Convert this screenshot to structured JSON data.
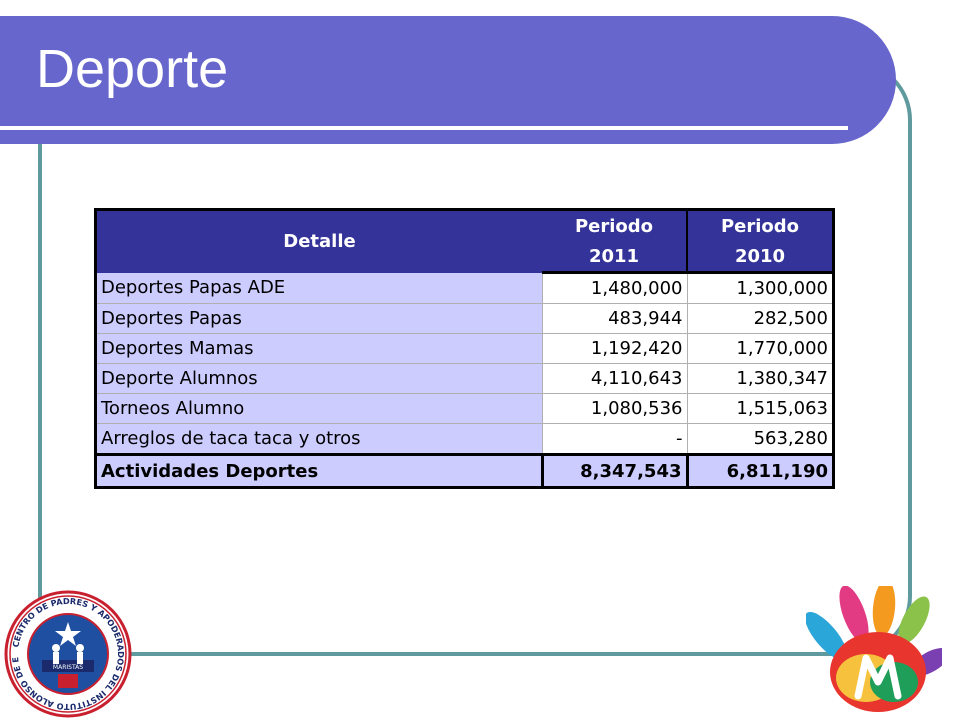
{
  "slide": {
    "title": "Deporte"
  },
  "table": {
    "header": {
      "detalle": "Detalle",
      "col1_line1": "Periodo",
      "col1_line2": "2011",
      "col2_line1": "Periodo",
      "col2_line2": "2010"
    },
    "rows": [
      {
        "label": "Deportes Papas ADE",
        "y2011": "1,480,000",
        "y2010": "1,300,000"
      },
      {
        "label": "Deportes Papas",
        "y2011": "483,944",
        "y2010": "282,500"
      },
      {
        "label": "Deportes Mamas",
        "y2011": "1,192,420",
        "y2010": "1,770,000"
      },
      {
        "label": "Deporte Alumnos",
        "y2011": "4,110,643",
        "y2010": "1,380,347"
      },
      {
        "label": "Torneos Alumno",
        "y2011": "1,080,536",
        "y2010": "1,515,063"
      },
      {
        "label": "Arreglos de taca taca y otros",
        "y2011": "-",
        "y2010": "563,280"
      }
    ],
    "total": {
      "label": "Actividades Deportes",
      "y2011": "8,347,543",
      "y2010": "6,811,190"
    }
  },
  "logos": {
    "left_seal_text": "CENTRO DE PADRES Y APODERADOS DEL INSTITUTO ALONSO DE ERCILLA",
    "left_seal_badge": "MARISTAS",
    "right_logo": "hand-logo"
  },
  "colors": {
    "banner": "#6666cc",
    "frame": "#5f9b9e",
    "header_bg": "#333399",
    "label_bg": "#ccccff"
  }
}
